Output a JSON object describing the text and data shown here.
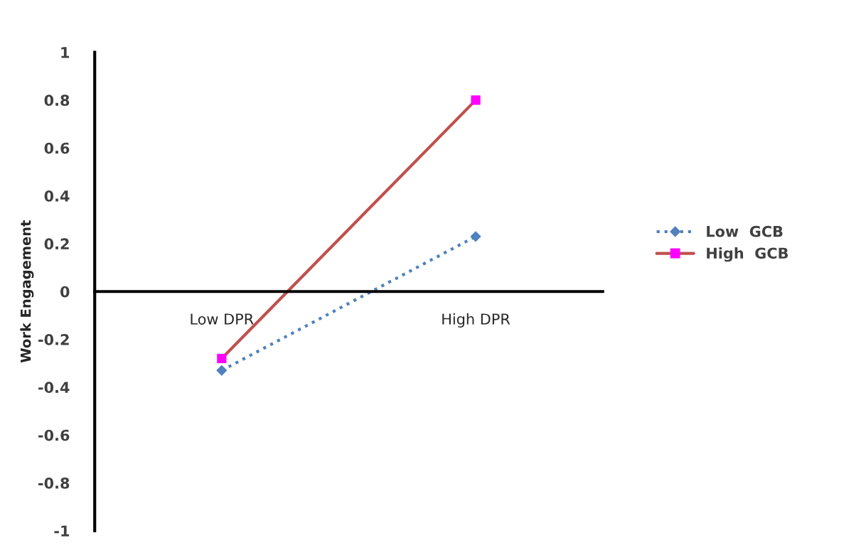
{
  "chart_data": {
    "type": "line",
    "ylabel": "Work Engagement",
    "categories": [
      "Low DPR",
      "High DPR"
    ],
    "series": [
      {
        "name": "Low  GCB",
        "color": "#4f81bd",
        "values": [
          -0.33,
          0.23
        ],
        "marker": "diamond",
        "line_style": "dotted"
      },
      {
        "name": "High  GCB",
        "color": "#c0504d",
        "colors": [
          "#ff00ff",
          "#ff00ff"
        ],
        "values": [
          -0.28,
          0.8
        ],
        "marker": "square",
        "line_style": "solid"
      }
    ],
    "ylim": [
      -1,
      1
    ],
    "yticks": [
      -1,
      -0.8,
      -0.6,
      -0.4,
      -0.2,
      0,
      0.2,
      0.4,
      0.6,
      0.8,
      1
    ],
    "grid": false,
    "legend": "right"
  }
}
